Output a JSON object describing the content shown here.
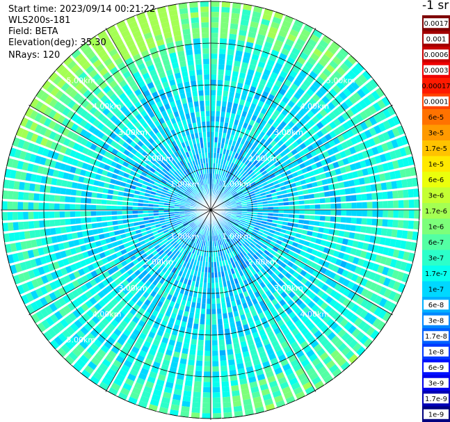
{
  "header": {
    "start_time": "Start time: 2023/09/14 00:21:22",
    "instrument": "WLS200s-181",
    "field": "Field: BETA",
    "elevation": "Elevation(deg): 35.30",
    "nrays": "NRays: 120"
  },
  "units_label": "-1 sr",
  "chart_data": {
    "type": "heatmap",
    "projection": "polar (PPI)",
    "field": "BETA",
    "nrays": 120,
    "range_rings_km": [
      1,
      2,
      3,
      4,
      5
    ],
    "ring_labels": [
      "1.00km",
      "2.00km",
      "3.00km",
      "4.00km",
      "5.00km"
    ],
    "max_range_km": 5.0,
    "colorbar": {
      "scale": "log",
      "tick_labels": [
        "0.0017",
        "0.001",
        "0.0006",
        "0.0003",
        "0.00017",
        "0.0001",
        "6e-5",
        "3e-5",
        "1.7e-5",
        "1e-5",
        "6e-6",
        "3e-6",
        "1.7e-6",
        "1e-6",
        "6e-7",
        "3e-7",
        "1.7e-7",
        "1e-7",
        "6e-8",
        "3e-8",
        "1.7e-8",
        "1e-8",
        "6e-9",
        "3e-9",
        "1.7e-9",
        "1e-9"
      ],
      "colors": [
        "#7d0000",
        "#a30000",
        "#c80000",
        "#ee0000",
        "#ff1a00",
        "#ff4300",
        "#ff7200",
        "#ff9a00",
        "#ffc300",
        "#ffe900",
        "#ebff0c",
        "#c4ff33",
        "#a4ff53",
        "#7dff7a",
        "#53ffa4",
        "#2cffca",
        "#07ffee",
        "#00d8ff",
        "#00b0ff",
        "#0088ff",
        "#0060ff",
        "#0038ff",
        "#0010ff",
        "#0000ea",
        "#0000b6",
        "#000080"
      ],
      "label_on_dark": [
        true,
        true,
        true,
        true,
        false,
        true,
        false,
        false,
        false,
        false,
        false,
        false,
        false,
        false,
        false,
        false,
        false,
        false,
        true,
        true,
        true,
        true,
        true,
        true,
        true,
        true
      ]
    }
  }
}
